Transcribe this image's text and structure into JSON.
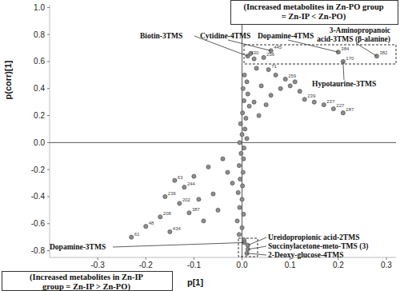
{
  "chart_data": {
    "type": "scatter",
    "x_label": "p[1]",
    "y_label": "p(corr)[1]",
    "xlim": [
      -0.4,
      0.32
    ],
    "ylim": [
      -0.85,
      1.02
    ],
    "xticks": [
      -0.3,
      -0.2,
      -0.1,
      {
        "value": 0,
        "label": "0.0"
      },
      0.1,
      0.2,
      0.3
    ],
    "yticks": [
      {
        "value": 1,
        "label": "1.0"
      },
      0.8,
      0.6,
      0.4,
      0.2,
      {
        "value": 0,
        "label": "0.0"
      },
      -0.2,
      -0.4,
      -0.6,
      -0.8
    ],
    "grid": false,
    "series": [
      {
        "color": "#8c8c8c",
        "marker": "circle",
        "x": [
          0.012,
          0.06,
          0.045,
          0.025,
          0.2,
          0.28,
          0.21,
          0.018,
          0.03,
          0.055,
          0.07,
          0.09,
          0.1,
          0.12,
          0.13,
          0.15,
          0.17,
          0.19,
          0.21,
          0.11,
          0.08,
          0.06,
          0.04,
          0.05,
          0.035,
          0.025,
          0.005,
          0.01,
          0.002,
          0.012,
          0.004,
          0.015,
          0.001,
          0.008,
          -0.003,
          0.006,
          0,
          0.01,
          -0.005,
          0.004,
          -0.002,
          0.003,
          -0.006,
          0.002,
          -0.004,
          0.001,
          -0.008,
          0,
          -0.005,
          0.003,
          -0.01,
          0,
          -0.006,
          0.004,
          0.005,
          0.012,
          0.012,
          0.01,
          -0.04,
          -0.07,
          -0.03,
          -0.1,
          -0.14,
          -0.12,
          -0.16,
          -0.13,
          -0.09,
          -0.06,
          -0.11,
          -0.17,
          -0.2,
          -0.15,
          -0.23,
          -0.08,
          -0.05,
          -0.02
        ],
        "values": [
          0.64,
          0.68,
          0.63,
          0.62,
          0.67,
          0.64,
          0.6,
          0.66,
          0.55,
          0.54,
          0.5,
          0.47,
          0.42,
          0.38,
          0.32,
          0.3,
          0.28,
          0.25,
          0.22,
          0.45,
          0.4,
          0.35,
          0.42,
          0.28,
          0.2,
          0.3,
          0.5,
          0.45,
          0.4,
          0.36,
          0.31,
          0.27,
          0.22,
          0.18,
          0.14,
          0.1,
          0.06,
          0.03,
          0,
          -0.04,
          -0.08,
          -0.12,
          -0.17,
          -0.22,
          -0.27,
          -0.32,
          -0.37,
          -0.42,
          -0.48,
          -0.53,
          -0.58,
          -0.63,
          -0.68,
          -0.72,
          -0.74,
          -0.76,
          -0.79,
          -0.82,
          -0.12,
          -0.18,
          -0.22,
          -0.25,
          -0.28,
          -0.33,
          -0.4,
          -0.45,
          -0.42,
          -0.38,
          -0.52,
          -0.55,
          -0.62,
          -0.66,
          -0.7,
          -0.58,
          -0.5,
          -0.3
        ],
        "point_labels": [
          "430",
          "445",
          "256",
          null,
          "384",
          "382",
          "170",
          null,
          null,
          "71",
          null,
          "259",
          null,
          null,
          "239",
          null,
          "237",
          "227",
          "287",
          null,
          null,
          null,
          null,
          null,
          null,
          null,
          null,
          null,
          null,
          null,
          null,
          null,
          null,
          null,
          null,
          null,
          null,
          null,
          null,
          null,
          null,
          null,
          null,
          null,
          null,
          null,
          null,
          null,
          null,
          null,
          null,
          null,
          null,
          null,
          null,
          null,
          null,
          null,
          null,
          null,
          null,
          null,
          "63",
          "244",
          "236",
          "202",
          null,
          null,
          "387",
          "208",
          "48",
          "434",
          "61",
          null,
          null,
          null
        ]
      }
    ],
    "annotations": [
      {
        "lines": [
          "Biotin-3TMS"
        ],
        "x": 0.012,
        "y": 0.64
      },
      {
        "lines": [
          "Cytidine-4TMS"
        ],
        "x": 0.06,
        "y": 0.68
      },
      {
        "lines": [
          "Dopamine-4TMS"
        ],
        "x": 0.2,
        "y": 0.67
      },
      {
        "lines": [
          "3-Aminopropanoic",
          "acid-3TMS (β-alanine)"
        ],
        "x": 0.28,
        "y": 0.64
      },
      {
        "lines": [
          "Hypotaurine-3TMS"
        ],
        "x": 0.21,
        "y": 0.6
      },
      {
        "lines": [
          "Dopamine-3TMS"
        ],
        "x": 0.005,
        "y": -0.74
      },
      {
        "lines": [
          "Ureidopropionic acid-2TMS"
        ],
        "x": 0.012,
        "y": -0.76
      },
      {
        "lines": [
          "Succinylacetone-meto-TMS (3)"
        ],
        "x": 0.012,
        "y": -0.79
      },
      {
        "lines": [
          "2-Deoxy-glucose-4TMS"
        ],
        "x": 0.01,
        "y": -0.82
      }
    ],
    "group_notes": [
      {
        "lines": [
          "(Increased metabolites in Zn-PO group",
          "= Zn-IP < Zn-PO)"
        ]
      },
      {
        "lines": [
          "(Increased metabolites in Zn-IP",
          "group = Zn-IP > Zn-PO)"
        ]
      }
    ]
  }
}
